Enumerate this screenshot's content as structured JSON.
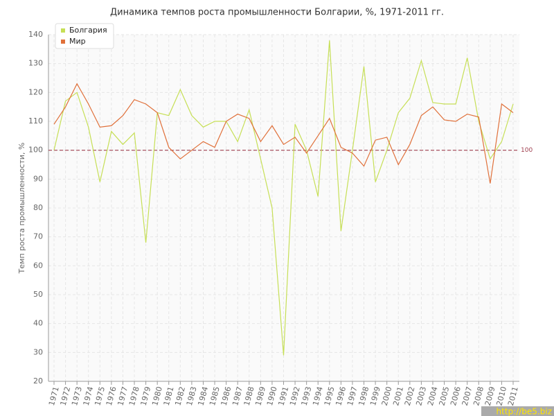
{
  "chart_data": {
    "type": "line",
    "title": "Динамика темпов роста промышленности Болгарии, %, 1971-2011 гг.",
    "y_label": "Темп роста промышленности, %",
    "categories": [
      "1971",
      "1972",
      "1973",
      "1974",
      "1975",
      "1976",
      "1977",
      "1978",
      "1979",
      "1980",
      "1981",
      "1982",
      "1983",
      "1984",
      "1985",
      "1986",
      "1987",
      "1988",
      "1989",
      "1990",
      "1991",
      "1992",
      "1993",
      "1994",
      "1995",
      "1996",
      "1997",
      "1998",
      "1999",
      "2000",
      "2001",
      "2002",
      "2003",
      "2004",
      "2005",
      "2006",
      "2007",
      "2008",
      "2009",
      "2010",
      "2011"
    ],
    "series": [
      {
        "name": "Болгария",
        "color": "#c6df55",
        "values": [
          100,
          117,
          120,
          108,
          89,
          106.5,
          102,
          106,
          68,
          113,
          112,
          121,
          112,
          108,
          110,
          110,
          103,
          114,
          97,
          80,
          29,
          109,
          100,
          84,
          138,
          72,
          100,
          129,
          89,
          100,
          113,
          118,
          131,
          116.5,
          116,
          116,
          132,
          110,
          97,
          103,
          116
        ]
      },
      {
        "name": "Мир",
        "color": "#e0703a",
        "values": [
          109,
          115,
          123,
          116,
          108,
          108.5,
          112,
          117.5,
          116,
          113,
          101,
          97,
          100,
          103,
          101,
          110,
          112.5,
          111,
          103,
          108.5,
          102,
          104.5,
          99,
          105,
          111,
          101,
          99,
          94.5,
          103.5,
          104.5,
          95,
          102,
          112,
          115,
          110.5,
          110,
          112.5,
          111.5,
          88.5,
          116,
          113
        ]
      }
    ],
    "reference_line": 100,
    "reference_color": "#a04050",
    "ylim": [
      20,
      140
    ],
    "yticks": [
      20,
      30,
      40,
      50,
      60,
      70,
      80,
      90,
      100,
      110,
      120,
      130,
      140
    ],
    "grid": true,
    "legend": "top-left",
    "watermark": "http://be5.biz"
  }
}
